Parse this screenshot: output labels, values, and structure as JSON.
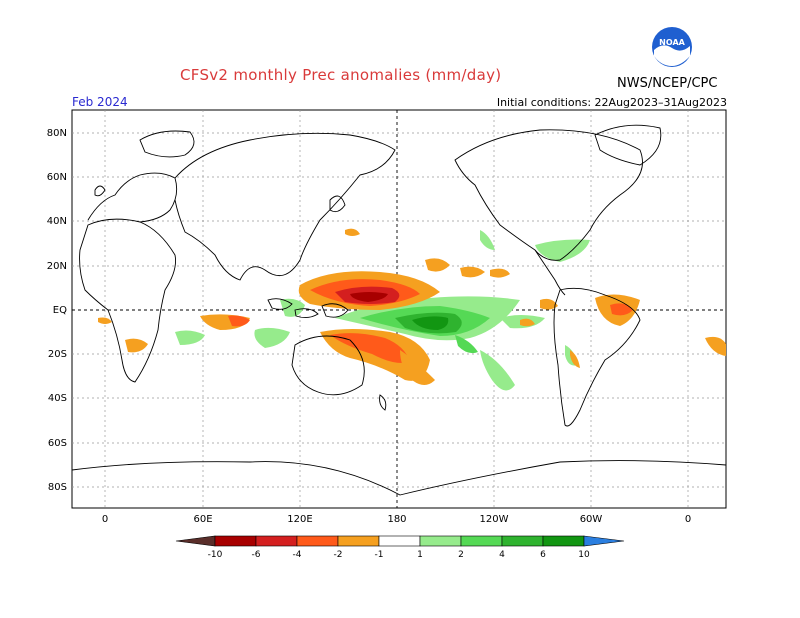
{
  "title": "CFSv2 monthly Prec anomalies (mm/day)",
  "period": "Feb 2024",
  "initial_conditions": "Initial conditions: 22Aug2023–31Aug2023",
  "agency": "NWS/NCEP/CPC",
  "logo_text": "NOAA",
  "lat_labels": [
    "80N",
    "60N",
    "40N",
    "20N",
    "EQ",
    "20S",
    "40S",
    "60S",
    "80S"
  ],
  "lon_labels": [
    "0",
    "60E",
    "120E",
    "180",
    "120W",
    "60W",
    "0"
  ],
  "colorbar": {
    "labels": [
      "-10",
      "-6",
      "-4",
      "-2",
      "-1",
      "1",
      "2",
      "4",
      "6",
      "10"
    ],
    "colors": {
      "lt_minus10": "#5a2e2a",
      "m10_m6": "#a80000",
      "m6_m4": "#d41f1f",
      "m4_m2": "#ff5a1a",
      "m2_m1": "#f5a020",
      "neutral": "#ffffff",
      "p1_p2": "#96eb8c",
      "p2_p4": "#55d955",
      "p4_p6": "#2fb32f",
      "p6_p10": "#129612",
      "gt_10": "#2b7fe0"
    }
  }
}
